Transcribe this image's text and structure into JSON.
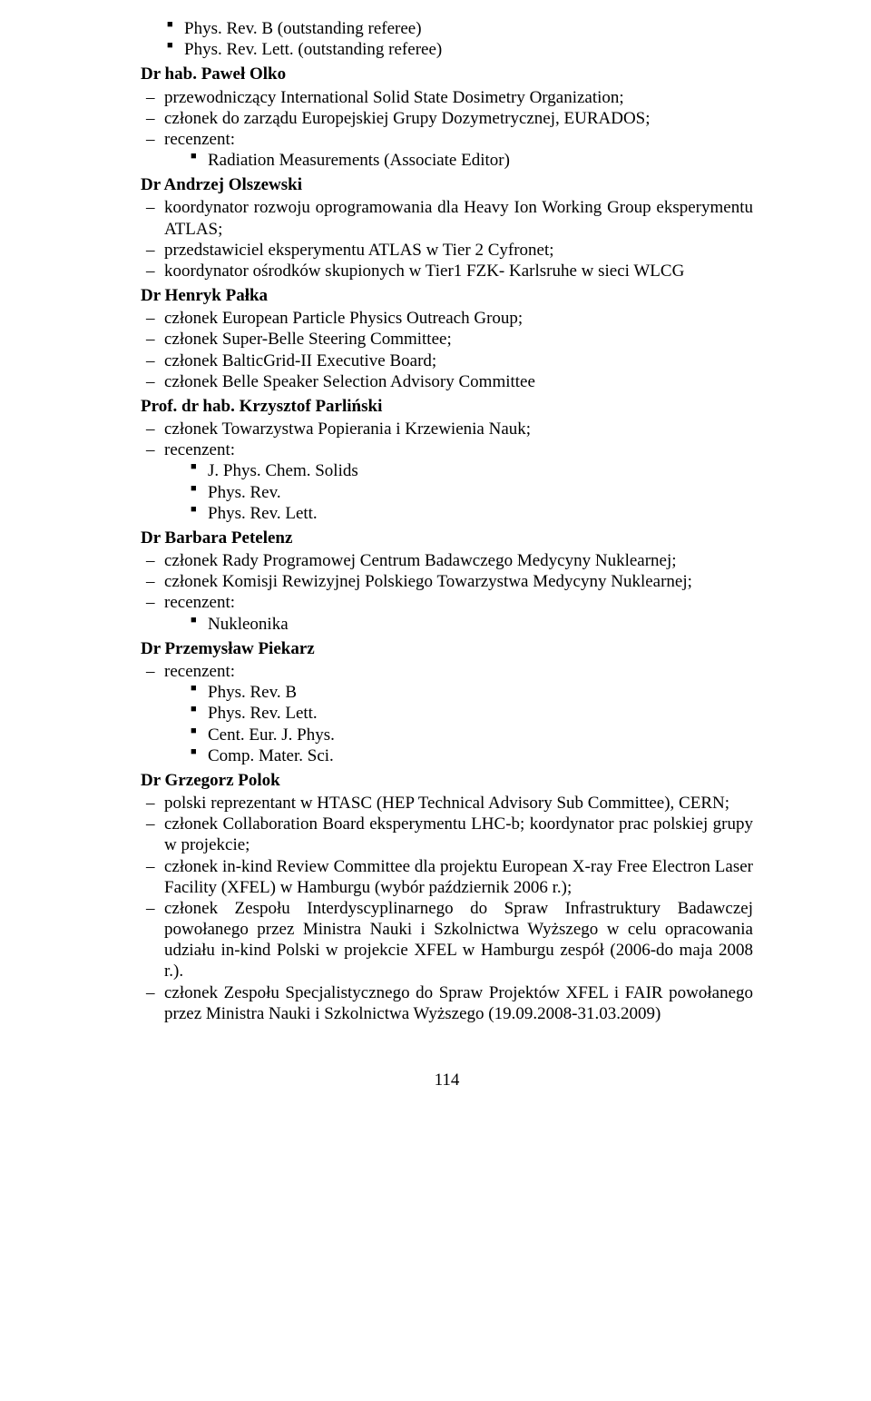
{
  "font_family": "Times New Roman",
  "text_color": "#000000",
  "background_color": "#ffffff",
  "page_number": "114",
  "entries": [
    {
      "name_prefix": "",
      "name": "",
      "continued_square_items": [
        "Phys. Rev. B (outstanding referee)",
        "Phys. Rev. Lett. (outstanding referee)"
      ],
      "dash_items": []
    },
    {
      "name": "Dr hab. Paweł Olko",
      "dash_items": [
        {
          "text": "przewodniczący International Solid State Dosimetry Organization;"
        },
        {
          "text": "członek do zarządu Europejskiej Grupy Dozymetrycznej, EURADOS;"
        },
        {
          "text": "recenzent:",
          "sq": [
            "Radiation Measurements (Associate Editor)"
          ]
        }
      ]
    },
    {
      "name": "Dr Andrzej Olszewski",
      "dash_items": [
        {
          "text": "koordynator rozwoju oprogramowania dla Heavy Ion Working Group eksperymentu ATLAS;"
        },
        {
          "text": "przedstawiciel eksperymentu ATLAS w Tier 2 Cyfronet;"
        },
        {
          "text": "koordynator ośrodków skupionych w Tier1 FZK- Karlsruhe w sieci WLCG"
        }
      ]
    },
    {
      "name": "Dr Henryk  Pałka",
      "dash_items": [
        {
          "text": "członek European Particle Physics Outreach Group;"
        },
        {
          "text": "członek Super-Belle Steering Committee;"
        },
        {
          "text": "członek BalticGrid-II Executive Board;"
        },
        {
          "text": "członek Belle Speaker Selection Advisory Committee"
        }
      ]
    },
    {
      "name": "Prof. dr hab. Krzysztof Parliński",
      "dash_items": [
        {
          "text": "członek Towarzystwa Popierania i Krzewienia Nauk;"
        },
        {
          "text": "recenzent:",
          "sq": [
            "J. Phys. Chem. Solids",
            "Phys. Rev.",
            "Phys. Rev. Lett."
          ]
        }
      ]
    },
    {
      "name": "Dr Barbara Petelenz",
      "dash_items": [
        {
          "text": "członek  Rady Programowej Centrum Badawczego Medycyny Nuklearnej;"
        },
        {
          "text": "członek Komisji Rewizyjnej Polskiego Towarzystwa Medycyny Nuklearnej;"
        },
        {
          "text": "recenzent:",
          "sq": [
            "Nukleonika"
          ]
        }
      ]
    },
    {
      "name": "Dr Przemysław Piekarz",
      "dash_items": [
        {
          "text": "recenzent:",
          "sq": [
            "Phys. Rev. B",
            "Phys. Rev. Lett.",
            "Cent. Eur. J. Phys.",
            "Comp. Mater. Sci."
          ]
        }
      ]
    },
    {
      "name": "Dr Grzegorz Polok",
      "dash_items": [
        {
          "text": "polski reprezentant w HTASC (HEP Technical Advisory Sub Committee), CERN;"
        },
        {
          "text": "członek Collaboration Board eksperymentu LHC-b; koordynator prac polskiej grupy w projekcie;"
        },
        {
          "text": "członek in-kind Review Committee dla projektu European X-ray Free Electron Laser Facility (XFEL) w Hamburgu (wybór październik 2006 r.);"
        },
        {
          "text": "członek Zespołu Interdyscyplinarnego do Spraw Infrastruktury Badawczej powołanego przez Ministra Nauki i Szkolnictwa Wyższego w celu opracowania udziału in-kind Polski w projekcie XFEL w Hamburgu zespół (2006-do maja 2008 r.)."
        },
        {
          "text": "członek Zespołu Specjalistycznego do Spraw Projektów XFEL i FAIR powołanego przez Ministra Nauki i Szkolnictwa Wyższego (19.09.2008-31.03.2009)"
        }
      ]
    }
  ]
}
